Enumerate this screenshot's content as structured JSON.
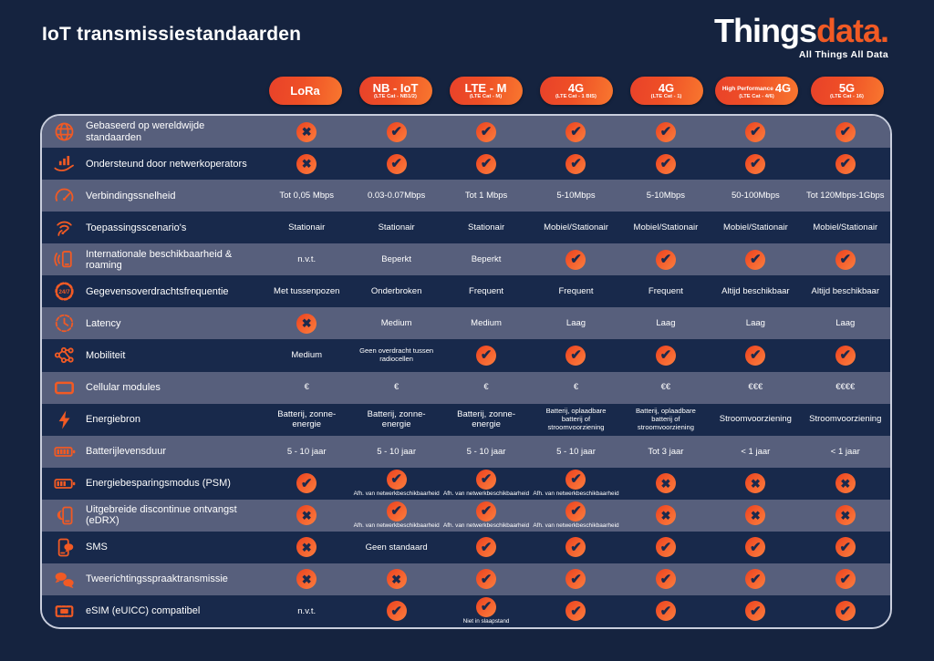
{
  "page": {
    "title": "IoT transmissiestandaarden"
  },
  "logo": {
    "part1": "Things",
    "part2": "data.",
    "tagline": "All Things All Data"
  },
  "colors": {
    "background": "#15233F",
    "row_dark": "#18294B",
    "row_light": "#575F7C",
    "accent_orange": "#F15A24",
    "mark_glyph": "#1B2A4C",
    "table_border": "#C9CEDD"
  },
  "chart_data": {
    "type": "table",
    "title": "IoT transmissiestandaarden",
    "columns": [
      {
        "name": "LoRa",
        "prefix": "",
        "sub": ""
      },
      {
        "name": "NB - IoT",
        "prefix": "",
        "sub": "(LTE Cat - NB1/2)"
      },
      {
        "name": "LTE - M",
        "prefix": "",
        "sub": "(LTE Cat - M)"
      },
      {
        "name": "4G",
        "prefix": "",
        "sub": "(LTE Cat - 1 BIS)"
      },
      {
        "name": "4G",
        "prefix": "",
        "sub": "(LTE Cat - 1)"
      },
      {
        "name": "4G",
        "prefix": "High Performance",
        "sub": "(LTE Cat - 4/6)"
      },
      {
        "name": "5G",
        "prefix": "",
        "sub": "(LTE Cat - 16)"
      }
    ],
    "rows": [
      {
        "icon": "globe-icon",
        "label": "Gebaseerd op wereldwijde standaarden",
        "cells": [
          {
            "mark": "cross"
          },
          {
            "mark": "check"
          },
          {
            "mark": "check"
          },
          {
            "mark": "check"
          },
          {
            "mark": "check"
          },
          {
            "mark": "check"
          },
          {
            "mark": "check"
          }
        ]
      },
      {
        "icon": "network-operator-icon",
        "label": "Ondersteund door netwerkoperators",
        "cells": [
          {
            "mark": "cross"
          },
          {
            "mark": "check"
          },
          {
            "mark": "check"
          },
          {
            "mark": "check"
          },
          {
            "mark": "check"
          },
          {
            "mark": "check"
          },
          {
            "mark": "check"
          }
        ]
      },
      {
        "icon": "speedometer-icon",
        "label": "Verbindingssnelheid",
        "cells": [
          {
            "text": "Tot 0,05 Mbps"
          },
          {
            "text": "0.03-0.07Mbps"
          },
          {
            "text": "Tot 1 Mbps"
          },
          {
            "text": "5-10Mbps"
          },
          {
            "text": "5-10Mbps"
          },
          {
            "text": "50-100Mbps"
          },
          {
            "text": "Tot 120Mbps-1Gbps"
          }
        ]
      },
      {
        "icon": "coverage-gauge-icon",
        "label": "Toepassingsscenario's",
        "cells": [
          {
            "text": "Stationair"
          },
          {
            "text": "Stationair"
          },
          {
            "text": "Stationair"
          },
          {
            "text": "Mobiel/Stationair"
          },
          {
            "text": "Mobiel/Stationair"
          },
          {
            "text": "Mobiel/Stationair"
          },
          {
            "text": "Mobiel/Stationair"
          }
        ]
      },
      {
        "icon": "roaming-phone-icon",
        "label": "Internationale beschikbaarheid & roaming",
        "cells": [
          {
            "text": "n.v.t."
          },
          {
            "text": "Beperkt"
          },
          {
            "text": "Beperkt"
          },
          {
            "mark": "check"
          },
          {
            "mark": "check"
          },
          {
            "mark": "check"
          },
          {
            "mark": "check"
          }
        ]
      },
      {
        "icon": "always-on-24-7-icon",
        "label": "Gegevensoverdrachtsfrequentie",
        "cells": [
          {
            "text": "Met tussenpozen"
          },
          {
            "text": "Onderbroken"
          },
          {
            "text": "Frequent"
          },
          {
            "text": "Frequent"
          },
          {
            "text": "Frequent"
          },
          {
            "text": "Altijd beschikbaar"
          },
          {
            "text": "Altijd beschikbaar"
          }
        ]
      },
      {
        "icon": "latency-clock-icon",
        "label": "Latency",
        "cells": [
          {
            "mark": "cross"
          },
          {
            "text": "Medium"
          },
          {
            "text": "Medium"
          },
          {
            "text": "Laag"
          },
          {
            "text": "Laag"
          },
          {
            "text": "Laag"
          },
          {
            "text": "Laag"
          }
        ]
      },
      {
        "icon": "mobility-network-icon",
        "label": "Mobiliteit",
        "cells": [
          {
            "text": "Medium"
          },
          {
            "text": "Geen overdracht tussen radiocellen"
          },
          {
            "mark": "check"
          },
          {
            "mark": "check"
          },
          {
            "mark": "check"
          },
          {
            "mark": "check"
          },
          {
            "mark": "check"
          }
        ]
      },
      {
        "icon": "cellular-module-icon",
        "label": "Cellular modules",
        "cells": [
          {
            "text": "€"
          },
          {
            "text": "€"
          },
          {
            "text": "€"
          },
          {
            "text": "€"
          },
          {
            "text": "€€"
          },
          {
            "text": "€€€"
          },
          {
            "text": "€€€€"
          }
        ]
      },
      {
        "icon": "lightning-icon",
        "label": "Energiebron",
        "cells": [
          {
            "text": "Batterij, zonne-energie"
          },
          {
            "text": "Batterij, zonne-energie"
          },
          {
            "text": "Batterij, zonne-energie"
          },
          {
            "text": "Batterij, oplaadbare batterij of stroomvoorziening"
          },
          {
            "text": "Batterij, oplaadbare batterij of stroomvoorziening"
          },
          {
            "text": "Stroomvoorziening"
          },
          {
            "text": "Stroomvoorziening"
          }
        ]
      },
      {
        "icon": "battery-full-icon",
        "label": "Batterijlevensduur",
        "cells": [
          {
            "text": "5 - 10 jaar"
          },
          {
            "text": "5 - 10 jaar"
          },
          {
            "text": "5 - 10 jaar"
          },
          {
            "text": "5 - 10 jaar"
          },
          {
            "text": "Tot 3 jaar"
          },
          {
            "text": "< 1 jaar"
          },
          {
            "text": "< 1 jaar"
          }
        ]
      },
      {
        "icon": "battery-saving-icon",
        "label": "Energiebesparingsmodus (PSM)",
        "cells": [
          {
            "mark": "check"
          },
          {
            "mark": "check",
            "sub": "Afh. van netwerkbeschikbaarheid"
          },
          {
            "mark": "check",
            "sub": "Afh. van netwerkbeschikbaarheid"
          },
          {
            "mark": "check",
            "sub": "Afh. van netwerkbeschikbaarheid"
          },
          {
            "mark": "cross"
          },
          {
            "mark": "cross"
          },
          {
            "mark": "cross"
          }
        ]
      },
      {
        "icon": "phone-moon-icon",
        "label": "Uitgebreide discontinue ontvangst (eDRX)",
        "cells": [
          {
            "mark": "cross"
          },
          {
            "mark": "check",
            "sub": "Afh. van netwerkbeschikbaarheid"
          },
          {
            "mark": "check",
            "sub": "Afh. van netwerkbeschikbaarheid"
          },
          {
            "mark": "check",
            "sub": "Afh. van netwerkbeschikbaarheid"
          },
          {
            "mark": "cross"
          },
          {
            "mark": "cross"
          },
          {
            "mark": "cross"
          }
        ]
      },
      {
        "icon": "phone-sms-icon",
        "label": "SMS",
        "cells": [
          {
            "mark": "cross"
          },
          {
            "text": "Geen standaard"
          },
          {
            "mark": "check"
          },
          {
            "mark": "check"
          },
          {
            "mark": "check"
          },
          {
            "mark": "check"
          },
          {
            "mark": "check"
          }
        ]
      },
      {
        "icon": "speech-bubbles-icon",
        "label": "Tweerichtingsspraaktransmissie",
        "cells": [
          {
            "mark": "cross"
          },
          {
            "mark": "cross"
          },
          {
            "mark": "check"
          },
          {
            "mark": "check"
          },
          {
            "mark": "check"
          },
          {
            "mark": "check"
          },
          {
            "mark": "check"
          }
        ]
      },
      {
        "icon": "sim-card-icon",
        "label": "eSIM (eUICC) compatibel",
        "cells": [
          {
            "text": "n.v.t."
          },
          {
            "mark": "check"
          },
          {
            "mark": "check",
            "sub": "Niet in slaapstand"
          },
          {
            "mark": "check"
          },
          {
            "mark": "check"
          },
          {
            "mark": "check"
          },
          {
            "mark": "check"
          }
        ]
      }
    ]
  }
}
